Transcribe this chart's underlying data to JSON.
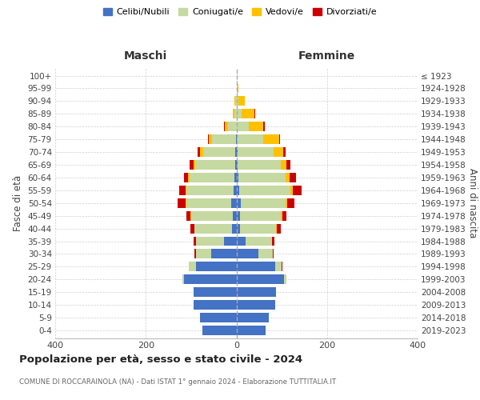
{
  "age_groups": [
    "0-4",
    "5-9",
    "10-14",
    "15-19",
    "20-24",
    "25-29",
    "30-34",
    "35-39",
    "40-44",
    "45-49",
    "50-54",
    "55-59",
    "60-64",
    "65-69",
    "70-74",
    "75-79",
    "80-84",
    "85-89",
    "90-94",
    "95-99",
    "100+"
  ],
  "birth_years": [
    "2019-2023",
    "2014-2018",
    "2009-2013",
    "2004-2008",
    "1999-2003",
    "1994-1998",
    "1989-1993",
    "1984-1988",
    "1979-1983",
    "1974-1978",
    "1969-1973",
    "1964-1968",
    "1959-1963",
    "1954-1958",
    "1949-1953",
    "1944-1948",
    "1939-1943",
    "1934-1938",
    "1929-1933",
    "1924-1928",
    "≤ 1923"
  ],
  "male": {
    "celibi": [
      75,
      80,
      95,
      95,
      115,
      90,
      55,
      28,
      10,
      8,
      12,
      6,
      5,
      3,
      2,
      1,
      0,
      0,
      0,
      0,
      0
    ],
    "coniugati": [
      0,
      0,
      0,
      0,
      5,
      15,
      35,
      62,
      82,
      92,
      98,
      105,
      98,
      88,
      72,
      52,
      18,
      4,
      2,
      0,
      0
    ],
    "vedovi": [
      0,
      0,
      0,
      0,
      0,
      0,
      0,
      0,
      1,
      1,
      2,
      2,
      3,
      4,
      6,
      8,
      8,
      4,
      2,
      0,
      0
    ],
    "divorziati": [
      0,
      0,
      0,
      0,
      0,
      0,
      2,
      5,
      8,
      10,
      18,
      14,
      10,
      8,
      5,
      2,
      2,
      0,
      0,
      0,
      0
    ]
  },
  "female": {
    "nubili": [
      65,
      72,
      85,
      88,
      105,
      85,
      48,
      20,
      8,
      8,
      10,
      7,
      4,
      3,
      2,
      1,
      0,
      0,
      0,
      0,
      0
    ],
    "coniugate": [
      0,
      0,
      0,
      0,
      5,
      15,
      32,
      58,
      80,
      90,
      98,
      112,
      105,
      95,
      80,
      58,
      28,
      12,
      4,
      2,
      0
    ],
    "vedove": [
      0,
      0,
      0,
      0,
      0,
      0,
      0,
      1,
      2,
      3,
      5,
      5,
      8,
      12,
      22,
      35,
      32,
      28,
      14,
      3,
      0
    ],
    "divorziate": [
      0,
      0,
      0,
      0,
      0,
      2,
      2,
      5,
      8,
      10,
      15,
      20,
      14,
      10,
      5,
      3,
      2,
      2,
      0,
      0,
      0
    ]
  },
  "colors": {
    "celibi": "#4472c4",
    "coniugati": "#c5d9a0",
    "vedovi": "#ffc000",
    "divorziati": "#cc0000"
  },
  "legend_labels": [
    "Celibi/Nubili",
    "Coniugati/e",
    "Vedovi/e",
    "Divorziati/e"
  ],
  "title": "Popolazione per età, sesso e stato civile - 2024",
  "subtitle": "COMUNE DI ROCCARAINOLA (NA) - Dati ISTAT 1° gennaio 2024 - Elaborazione TUTTITALIA.IT",
  "ylabel_left": "Fasce di età",
  "ylabel_right": "Anni di nascita",
  "xlabel_left": "Maschi",
  "xlabel_right": "Femmine",
  "xlim": 400,
  "bg_color": "#ffffff",
  "grid_color": "#cccccc",
  "bar_height": 0.75
}
